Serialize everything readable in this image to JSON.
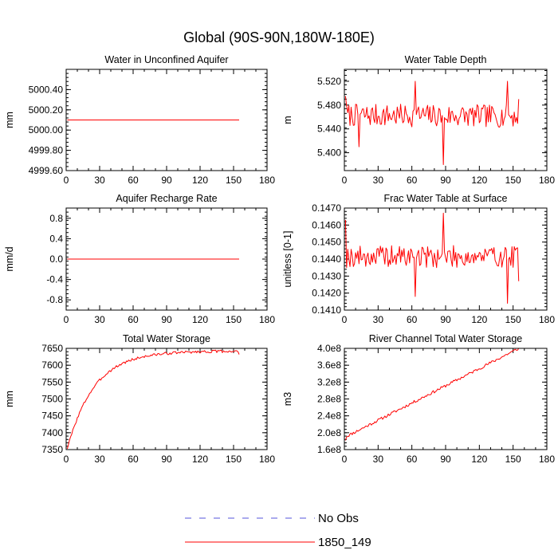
{
  "figure_title": "Global (90S-90N,180W-180E)",
  "legend": [
    {
      "label": "No Obs",
      "color": "#5555dd",
      "style": "dashed"
    },
    {
      "label": "1850_149",
      "color": "#ff0000",
      "style": "solid"
    }
  ],
  "chart_data": [
    {
      "type": "line",
      "title": "Water in Unconfined Aquifer",
      "xlabel": "",
      "ylabel": "mm",
      "xlim": [
        0,
        180
      ],
      "ylim": [
        4999.6,
        5000.6
      ],
      "xticks": [
        0,
        30,
        60,
        90,
        120,
        150,
        180
      ],
      "yticks": [
        4999.6,
        4999.8,
        5000.0,
        5000.2,
        5000.4
      ],
      "ytick_labels": [
        "4999.60",
        "4999.80",
        "5000.00",
        "5000.20",
        "5000.40"
      ],
      "series": [
        {
          "name": "1850_149",
          "color": "#ff0000",
          "generator": "flat",
          "start": 1,
          "end": 155,
          "value": 5000.1
        }
      ]
    },
    {
      "type": "line",
      "title": "Water Table Depth",
      "xlabel": "",
      "ylabel": "m",
      "xlim": [
        0,
        180
      ],
      "ylim": [
        5.37,
        5.54
      ],
      "xticks": [
        0,
        30,
        60,
        90,
        120,
        150,
        180
      ],
      "yticks": [
        5.4,
        5.44,
        5.48,
        5.52
      ],
      "ytick_labels": [
        "5.400",
        "5.440",
        "5.480",
        "5.520"
      ],
      "series": [
        {
          "name": "1850_149",
          "color": "#ff0000",
          "generator": "noise",
          "start": 1,
          "end": 155,
          "base": 5.463,
          "slope": -1e-05,
          "amp": 0.019,
          "seed": 7,
          "fixed": [
            [
              1,
              5.495
            ],
            [
              13,
              5.41
            ],
            [
              63,
              5.52
            ],
            [
              88,
              5.38
            ],
            [
              145,
              5.52
            ],
            [
              155,
              5.49
            ]
          ]
        }
      ]
    },
    {
      "type": "line",
      "title": "Aquifer Recharge Rate",
      "xlabel": "",
      "ylabel": "mm/d",
      "xlim": [
        0,
        180
      ],
      "ylim": [
        -1.0,
        1.0
      ],
      "xticks": [
        0,
        30,
        60,
        90,
        120,
        150,
        180
      ],
      "yticks": [
        -0.8,
        -0.4,
        0.0,
        0.4,
        0.8
      ],
      "ytick_labels": [
        "-0.8",
        "-0.4",
        "0.0",
        "0.4",
        "0.8"
      ],
      "series": [
        {
          "name": "1850_149",
          "color": "#ff0000",
          "generator": "flat",
          "start": 1,
          "end": 155,
          "value": 0.0
        }
      ]
    },
    {
      "type": "line",
      "title": "Frac Water Table at Surface",
      "xlabel": "",
      "ylabel": "unitless [0-1]",
      "xlim": [
        0,
        180
      ],
      "ylim": [
        0.141,
        0.147
      ],
      "xticks": [
        0,
        30,
        60,
        90,
        120,
        150,
        180
      ],
      "yticks": [
        0.141,
        0.142,
        0.143,
        0.144,
        0.145,
        0.146,
        0.147
      ],
      "ytick_labels": [
        "0.1410",
        "0.1420",
        "0.1430",
        "0.1440",
        "0.1450",
        "0.1460",
        "0.1470"
      ],
      "series": [
        {
          "name": "1850_149",
          "color": "#ff0000",
          "generator": "noise",
          "start": 1,
          "end": 155,
          "base": 0.14415,
          "slope": 0.0,
          "amp": 0.00065,
          "seed": 19,
          "fixed": [
            [
              1,
              0.1463
            ],
            [
              63,
              0.1418
            ],
            [
              88,
              0.1467
            ],
            [
              145,
              0.1414
            ],
            [
              155,
              0.1427
            ]
          ]
        }
      ]
    },
    {
      "type": "line",
      "title": "Total Water Storage",
      "xlabel": "",
      "ylabel": "mm",
      "xlim": [
        0,
        180
      ],
      "ylim": [
        7350,
        7650
      ],
      "xticks": [
        0,
        30,
        60,
        90,
        120,
        150,
        180
      ],
      "yticks": [
        7350,
        7400,
        7450,
        7500,
        7550,
        7600,
        7650
      ],
      "ytick_labels": [
        "7350",
        "7400",
        "7450",
        "7500",
        "7550",
        "7600",
        "7650"
      ],
      "series": [
        {
          "name": "1850_149",
          "color": "#ff0000",
          "generator": "saturating",
          "start": 1,
          "end": 155,
          "y0": 7352,
          "ymax": 7642,
          "tau": 24,
          "amp": 4,
          "seed": 3,
          "fixed": [
            [
              1,
              7352
            ],
            [
              155,
              7632
            ]
          ]
        }
      ]
    },
    {
      "type": "line",
      "title": "River Channel Total Water Storage",
      "xlabel": "",
      "ylabel": "m3",
      "xlim": [
        0,
        180
      ],
      "ylim": [
        160000000,
        400000000
      ],
      "xticks": [
        0,
        30,
        60,
        90,
        120,
        150,
        180
      ],
      "yticks": [
        160000000,
        200000000,
        240000000,
        280000000,
        320000000,
        360000000,
        400000000
      ],
      "ytick_labels": [
        "1.6e8",
        "2.0e8",
        "2.4e8",
        "2.8e8",
        "3.2e8",
        "3.6e8",
        "4.0e8"
      ],
      "series": [
        {
          "name": "1850_149",
          "color": "#ff0000",
          "generator": "linear",
          "start": 1,
          "end": 155,
          "y0": 190000000,
          "y1": 400000000,
          "amp": 3500000,
          "seed": 11,
          "fixed": [
            [
              1,
              182000000
            ],
            [
              155,
              400000000
            ]
          ]
        }
      ]
    }
  ]
}
